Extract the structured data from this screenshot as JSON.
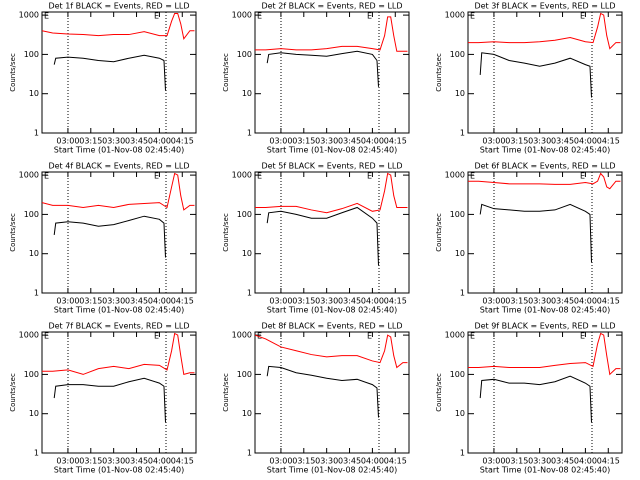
{
  "chart_data": [
    {
      "type": "line",
      "title": "Det 1f BLACK = Events, RED = LLD",
      "xlabel": "Start Time (01-Nov-08 02:45:40)",
      "ylabel": "Counts/sec",
      "log_y": true,
      "xlim": [
        "02:43",
        "04:24"
      ],
      "xticks": [
        "03:00",
        "03:15",
        "03:30",
        "03:45",
        "04:00",
        "04:15"
      ],
      "ylim": [
        1,
        1200
      ],
      "yticks": [
        1,
        10,
        100,
        1000
      ],
      "annotations": [
        "E",
        "E"
      ],
      "series": [
        {
          "name": "LLD",
          "color": "#ff0000",
          "x": [
            "02:43",
            "02:50",
            "03:00",
            "03:10",
            "03:20",
            "03:30",
            "03:40",
            "03:50",
            "04:00",
            "04:05",
            "04:08",
            "04:10",
            "04:12",
            "04:14",
            "04:16",
            "04:20",
            "04:23"
          ],
          "values": [
            400,
            350,
            330,
            320,
            300,
            320,
            320,
            380,
            300,
            300,
            700,
            1100,
            1100,
            600,
            250,
            400,
            400
          ]
        },
        {
          "name": "Events",
          "color": "#000000",
          "x": [
            "02:51",
            "02:52",
            "03:00",
            "03:10",
            "03:20",
            "03:30",
            "03:40",
            "03:50",
            "04:00",
            "04:03",
            "04:04"
          ],
          "values": [
            55,
            80,
            85,
            80,
            70,
            65,
            80,
            95,
            80,
            70,
            12
          ]
        }
      ]
    },
    {
      "type": "line",
      "title": "Det 2f BLACK = Events, RED = LLD",
      "xlabel": "Start Time (01-Nov-08 02:45:40)",
      "ylabel": "Counts/sec",
      "log_y": true,
      "xlim": [
        "02:43",
        "04:24"
      ],
      "xticks": [
        "03:00",
        "03:15",
        "03:30",
        "03:45",
        "04:00",
        "04:15"
      ],
      "ylim": [
        1,
        1200
      ],
      "yticks": [
        1,
        10,
        100,
        1000
      ],
      "annotations": [
        "E",
        "E"
      ],
      "series": [
        {
          "name": "LLD",
          "color": "#ff0000",
          "x": [
            "02:43",
            "02:50",
            "03:00",
            "03:10",
            "03:20",
            "03:30",
            "03:40",
            "03:50",
            "04:00",
            "04:05",
            "04:08",
            "04:10",
            "04:12",
            "04:14",
            "04:16",
            "04:20",
            "04:23"
          ],
          "values": [
            130,
            130,
            140,
            130,
            130,
            140,
            160,
            160,
            140,
            130,
            300,
            900,
            900,
            300,
            120,
            120,
            120
          ]
        },
        {
          "name": "Events",
          "color": "#000000",
          "x": [
            "02:51",
            "02:52",
            "03:00",
            "03:10",
            "03:20",
            "03:30",
            "03:40",
            "03:50",
            "04:00",
            "04:03",
            "04:04"
          ],
          "values": [
            60,
            100,
            110,
            100,
            95,
            90,
            105,
            120,
            100,
            70,
            15
          ]
        }
      ]
    },
    {
      "type": "line",
      "title": "Det 3f BLACK = Events, RED = LLD",
      "xlabel": "Start Time (01-Nov-08 02:45:40)",
      "ylabel": "Counts/sec",
      "log_y": true,
      "xlim": [
        "02:43",
        "04:24"
      ],
      "xticks": [
        "03:00",
        "03:15",
        "03:30",
        "03:45",
        "04:00",
        "04:15"
      ],
      "ylim": [
        1,
        1200
      ],
      "yticks": [
        1,
        10,
        100,
        1000
      ],
      "annotations": [
        "E",
        "E"
      ],
      "series": [
        {
          "name": "LLD",
          "color": "#ff0000",
          "x": [
            "02:43",
            "02:50",
            "03:00",
            "03:10",
            "03:20",
            "03:30",
            "03:40",
            "03:50",
            "04:00",
            "04:05",
            "04:08",
            "04:10",
            "04:12",
            "04:14",
            "04:16",
            "04:20",
            "04:23"
          ],
          "values": [
            200,
            200,
            210,
            200,
            200,
            210,
            230,
            270,
            210,
            200,
            500,
            1100,
            1000,
            300,
            140,
            200,
            200
          ]
        },
        {
          "name": "Events",
          "color": "#000000",
          "x": [
            "02:51",
            "02:52",
            "03:00",
            "03:10",
            "03:20",
            "03:30",
            "03:40",
            "03:50",
            "04:00",
            "04:03",
            "04:04"
          ],
          "values": [
            30,
            110,
            100,
            70,
            60,
            50,
            60,
            80,
            55,
            50,
            8
          ]
        }
      ]
    },
    {
      "type": "line",
      "title": "Det 4f BLACK = Events, RED = LLD",
      "xlabel": "Start Time (01-Nov-08 02:45:40)",
      "ylabel": "Counts/sec",
      "log_y": true,
      "xlim": [
        "02:43",
        "04:24"
      ],
      "xticks": [
        "03:00",
        "03:15",
        "03:30",
        "03:45",
        "04:00",
        "04:15"
      ],
      "ylim": [
        1,
        1200
      ],
      "yticks": [
        1,
        10,
        100,
        1000
      ],
      "annotations": [
        "E",
        "E"
      ],
      "series": [
        {
          "name": "LLD",
          "color": "#ff0000",
          "x": [
            "02:43",
            "02:50",
            "03:00",
            "03:10",
            "03:20",
            "03:30",
            "03:40",
            "03:50",
            "04:00",
            "04:05",
            "04:08",
            "04:10",
            "04:12",
            "04:14",
            "04:16",
            "04:20",
            "04:23"
          ],
          "values": [
            200,
            170,
            170,
            150,
            170,
            150,
            180,
            190,
            200,
            150,
            500,
            1100,
            1000,
            300,
            130,
            170,
            170
          ]
        },
        {
          "name": "Events",
          "color": "#000000",
          "x": [
            "02:51",
            "02:52",
            "03:00",
            "03:10",
            "03:20",
            "03:30",
            "03:40",
            "03:50",
            "04:00",
            "04:03",
            "04:04"
          ],
          "values": [
            30,
            60,
            65,
            60,
            50,
            55,
            70,
            90,
            75,
            60,
            8
          ]
        }
      ]
    },
    {
      "type": "line",
      "title": "Det 5f BLACK = Events, RED = LLD",
      "xlabel": "Start Time (01-Nov-08 02:45:40)",
      "ylabel": "Counts/sec",
      "log_y": true,
      "xlim": [
        "02:43",
        "04:24"
      ],
      "xticks": [
        "03:00",
        "03:15",
        "03:30",
        "03:45",
        "04:00",
        "04:15"
      ],
      "ylim": [
        1,
        1200
      ],
      "yticks": [
        1,
        10,
        100,
        1000
      ],
      "annotations": [
        "E",
        "E"
      ],
      "series": [
        {
          "name": "LLD",
          "color": "#ff0000",
          "x": [
            "02:43",
            "02:50",
            "03:00",
            "03:10",
            "03:20",
            "03:30",
            "03:40",
            "03:50",
            "04:00",
            "04:05",
            "04:08",
            "04:10",
            "04:12",
            "04:14",
            "04:16",
            "04:20",
            "04:23"
          ],
          "values": [
            150,
            150,
            160,
            160,
            130,
            110,
            140,
            190,
            120,
            130,
            400,
            1100,
            1000,
            300,
            150,
            150,
            150
          ]
        },
        {
          "name": "Events",
          "color": "#000000",
          "x": [
            "02:51",
            "02:52",
            "03:00",
            "03:10",
            "03:20",
            "03:30",
            "03:40",
            "03:50",
            "04:00",
            "04:03",
            "04:04"
          ],
          "values": [
            60,
            110,
            120,
            100,
            80,
            80,
            110,
            150,
            80,
            60,
            5
          ]
        }
      ]
    },
    {
      "type": "line",
      "title": "Det 6f BLACK = Events, RED = LLD",
      "xlabel": "Start Time (01-Nov-08 02:45:40)",
      "ylabel": "Counts/sec",
      "log_y": true,
      "xlim": [
        "02:43",
        "04:24"
      ],
      "xticks": [
        "03:00",
        "03:15",
        "03:30",
        "03:45",
        "04:00",
        "04:15"
      ],
      "ylim": [
        1,
        1200
      ],
      "yticks": [
        1,
        10,
        100,
        1000
      ],
      "annotations": [
        "E",
        "E"
      ],
      "series": [
        {
          "name": "LLD",
          "color": "#ff0000",
          "x": [
            "02:43",
            "02:50",
            "03:00",
            "03:10",
            "03:20",
            "03:30",
            "03:40",
            "03:50",
            "04:00",
            "04:05",
            "04:08",
            "04:10",
            "04:12",
            "04:14",
            "04:16",
            "04:20",
            "04:23"
          ],
          "values": [
            700,
            700,
            650,
            600,
            600,
            600,
            580,
            580,
            650,
            600,
            700,
            1100,
            900,
            500,
            450,
            700,
            700
          ]
        },
        {
          "name": "Events",
          "color": "#000000",
          "x": [
            "02:51",
            "02:52",
            "03:00",
            "03:10",
            "03:20",
            "03:30",
            "03:40",
            "03:50",
            "04:00",
            "04:03",
            "04:04"
          ],
          "values": [
            100,
            180,
            140,
            130,
            120,
            120,
            130,
            180,
            120,
            100,
            6
          ]
        }
      ]
    },
    {
      "type": "line",
      "title": "Det 7f BLACK = Events, RED = LLD",
      "xlabel": "Start Time (01-Nov-08 02:45:40)",
      "ylabel": "Counts/sec",
      "log_y": true,
      "xlim": [
        "02:43",
        "04:24"
      ],
      "xticks": [
        "03:00",
        "03:15",
        "03:30",
        "03:45",
        "04:00",
        "04:15"
      ],
      "ylim": [
        1,
        1200
      ],
      "yticks": [
        1,
        10,
        100,
        1000
      ],
      "annotations": [
        "E",
        "E"
      ],
      "series": [
        {
          "name": "LLD",
          "color": "#ff0000",
          "x": [
            "02:43",
            "02:50",
            "03:00",
            "03:10",
            "03:20",
            "03:30",
            "03:40",
            "03:50",
            "04:00",
            "04:05",
            "04:08",
            "04:10",
            "04:12",
            "04:14",
            "04:16",
            "04:20",
            "04:23"
          ],
          "values": [
            120,
            120,
            130,
            100,
            140,
            160,
            140,
            180,
            170,
            130,
            400,
            1100,
            1000,
            300,
            100,
            110,
            110
          ]
        },
        {
          "name": "Events",
          "color": "#000000",
          "x": [
            "02:51",
            "02:52",
            "03:00",
            "03:10",
            "03:20",
            "03:30",
            "03:40",
            "03:50",
            "04:00",
            "04:03",
            "04:04"
          ],
          "values": [
            25,
            50,
            55,
            55,
            50,
            50,
            65,
            80,
            60,
            50,
            6
          ]
        }
      ]
    },
    {
      "type": "line",
      "title": "Det 8f BLACK = Events, RED = LLD",
      "xlabel": "Start Time (01-Nov-08 02:45:40)",
      "ylabel": "Counts/sec",
      "log_y": true,
      "xlim": [
        "02:43",
        "04:24"
      ],
      "xticks": [
        "03:00",
        "03:15",
        "03:30",
        "03:45",
        "04:00",
        "04:15"
      ],
      "ylim": [
        1,
        1200
      ],
      "yticks": [
        1,
        10,
        100,
        1000
      ],
      "annotations": [
        "E",
        "E"
      ],
      "series": [
        {
          "name": "LLD",
          "color": "#ff0000",
          "x": [
            "02:43",
            "02:50",
            "03:00",
            "03:10",
            "03:20",
            "03:30",
            "03:40",
            "03:50",
            "04:00",
            "04:05",
            "04:08",
            "04:10",
            "04:12",
            "04:14",
            "04:16",
            "04:20",
            "04:23"
          ],
          "values": [
            1000,
            800,
            500,
            400,
            320,
            280,
            300,
            300,
            220,
            200,
            400,
            1000,
            900,
            300,
            150,
            200,
            200
          ]
        },
        {
          "name": "Events",
          "color": "#000000",
          "x": [
            "02:51",
            "02:52",
            "03:00",
            "03:10",
            "03:20",
            "03:30",
            "03:40",
            "03:50",
            "04:00",
            "04:03",
            "04:04"
          ],
          "values": [
            90,
            160,
            150,
            110,
            95,
            80,
            70,
            75,
            55,
            45,
            8
          ]
        }
      ]
    },
    {
      "type": "line",
      "title": "Det 9f BLACK = Events, RED = LLD",
      "xlabel": "Start Time (01-Nov-08 02:45:40)",
      "ylabel": "Counts/sec",
      "log_y": true,
      "xlim": [
        "02:43",
        "04:24"
      ],
      "xticks": [
        "03:00",
        "03:15",
        "03:30",
        "03:45",
        "04:00",
        "04:15"
      ],
      "ylim": [
        1,
        1200
      ],
      "yticks": [
        1,
        10,
        100,
        1000
      ],
      "annotations": [
        "E",
        "E"
      ],
      "series": [
        {
          "name": "LLD",
          "color": "#ff0000",
          "x": [
            "02:43",
            "02:50",
            "03:00",
            "03:10",
            "03:20",
            "03:30",
            "03:40",
            "03:50",
            "04:00",
            "04:05",
            "04:08",
            "04:10",
            "04:12",
            "04:14",
            "04:16",
            "04:20",
            "04:23"
          ],
          "values": [
            150,
            150,
            160,
            150,
            150,
            150,
            170,
            190,
            200,
            160,
            600,
            1100,
            1000,
            300,
            100,
            140,
            140
          ]
        },
        {
          "name": "Events",
          "color": "#000000",
          "x": [
            "02:51",
            "02:52",
            "03:00",
            "03:10",
            "03:20",
            "03:30",
            "03:40",
            "03:50",
            "04:00",
            "04:03",
            "04:04"
          ],
          "values": [
            25,
            70,
            75,
            60,
            60,
            55,
            65,
            90,
            60,
            50,
            6
          ]
        }
      ]
    }
  ]
}
